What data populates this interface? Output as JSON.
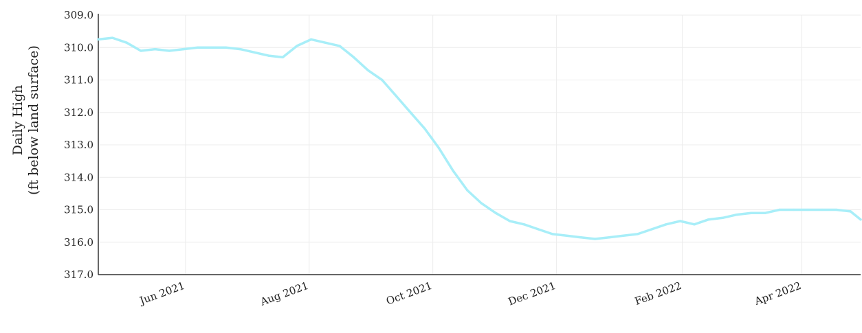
{
  "chart_data": {
    "type": "line",
    "title": "",
    "xlabel": "",
    "ylabel": "Daily High",
    "ylabel_unit": "(ft below land surface)",
    "y_inverted": true,
    "ylim": [
      309.0,
      317.0
    ],
    "yticks": [
      "309.0",
      "310.0",
      "311.0",
      "312.0",
      "313.0",
      "314.0",
      "315.0",
      "316.0",
      "317.0"
    ],
    "xlim": [
      "2021-04-19",
      "2022-04-30"
    ],
    "xticks": [
      {
        "date": "2021-06-01",
        "label": "Jun 2021"
      },
      {
        "date": "2021-08-01",
        "label": "Aug 2021"
      },
      {
        "date": "2021-10-01",
        "label": "Oct 2021"
      },
      {
        "date": "2021-12-01",
        "label": "Dec 2021"
      },
      {
        "date": "2022-02-01",
        "label": "Feb 2022"
      },
      {
        "date": "2022-04-01",
        "label": "Apr 2022"
      }
    ],
    "grid": true,
    "line_color": "#a8eef8",
    "series": [
      {
        "x": [
          "2021-04-19",
          "2021-04-26",
          "2021-05-03",
          "2021-05-10",
          "2021-05-17",
          "2021-05-24",
          "2021-05-31",
          "2021-06-07",
          "2021-06-14",
          "2021-06-21",
          "2021-06-28",
          "2021-07-05",
          "2021-07-12",
          "2021-07-19",
          "2021-07-26",
          "2021-08-02",
          "2021-08-09",
          "2021-08-16",
          "2021-08-23",
          "2021-08-30",
          "2021-09-06",
          "2021-09-13",
          "2021-09-20",
          "2021-09-27",
          "2021-10-04",
          "2021-10-11",
          "2021-10-18",
          "2021-10-25",
          "2021-11-01",
          "2021-11-08",
          "2021-11-15",
          "2021-11-22",
          "2021-11-29",
          "2021-12-06",
          "2021-12-13",
          "2021-12-20",
          "2021-12-27",
          "2022-01-03",
          "2022-01-10",
          "2022-01-17",
          "2022-01-24",
          "2022-01-31",
          "2022-02-07",
          "2022-02-14",
          "2022-02-21",
          "2022-02-28",
          "2022-03-07",
          "2022-03-14",
          "2022-03-21",
          "2022-03-28",
          "2022-04-04",
          "2022-04-11",
          "2022-04-18",
          "2022-04-25",
          "2022-04-30"
        ],
        "y": [
          309.75,
          309.7,
          309.85,
          310.1,
          310.05,
          310.1,
          310.05,
          310.0,
          310.0,
          310.0,
          310.05,
          310.15,
          310.25,
          310.3,
          309.95,
          309.75,
          309.85,
          309.95,
          310.3,
          310.7,
          311.0,
          311.5,
          312.0,
          312.5,
          313.1,
          313.8,
          314.4,
          314.8,
          315.1,
          315.35,
          315.45,
          315.6,
          315.75,
          315.8,
          315.85,
          315.9,
          315.85,
          315.8,
          315.75,
          315.6,
          315.45,
          315.35,
          315.45,
          315.3,
          315.25,
          315.15,
          315.1,
          315.1,
          315.0,
          315.0,
          315.0,
          315.0,
          315.0,
          315.05,
          315.3
        ]
      }
    ]
  }
}
